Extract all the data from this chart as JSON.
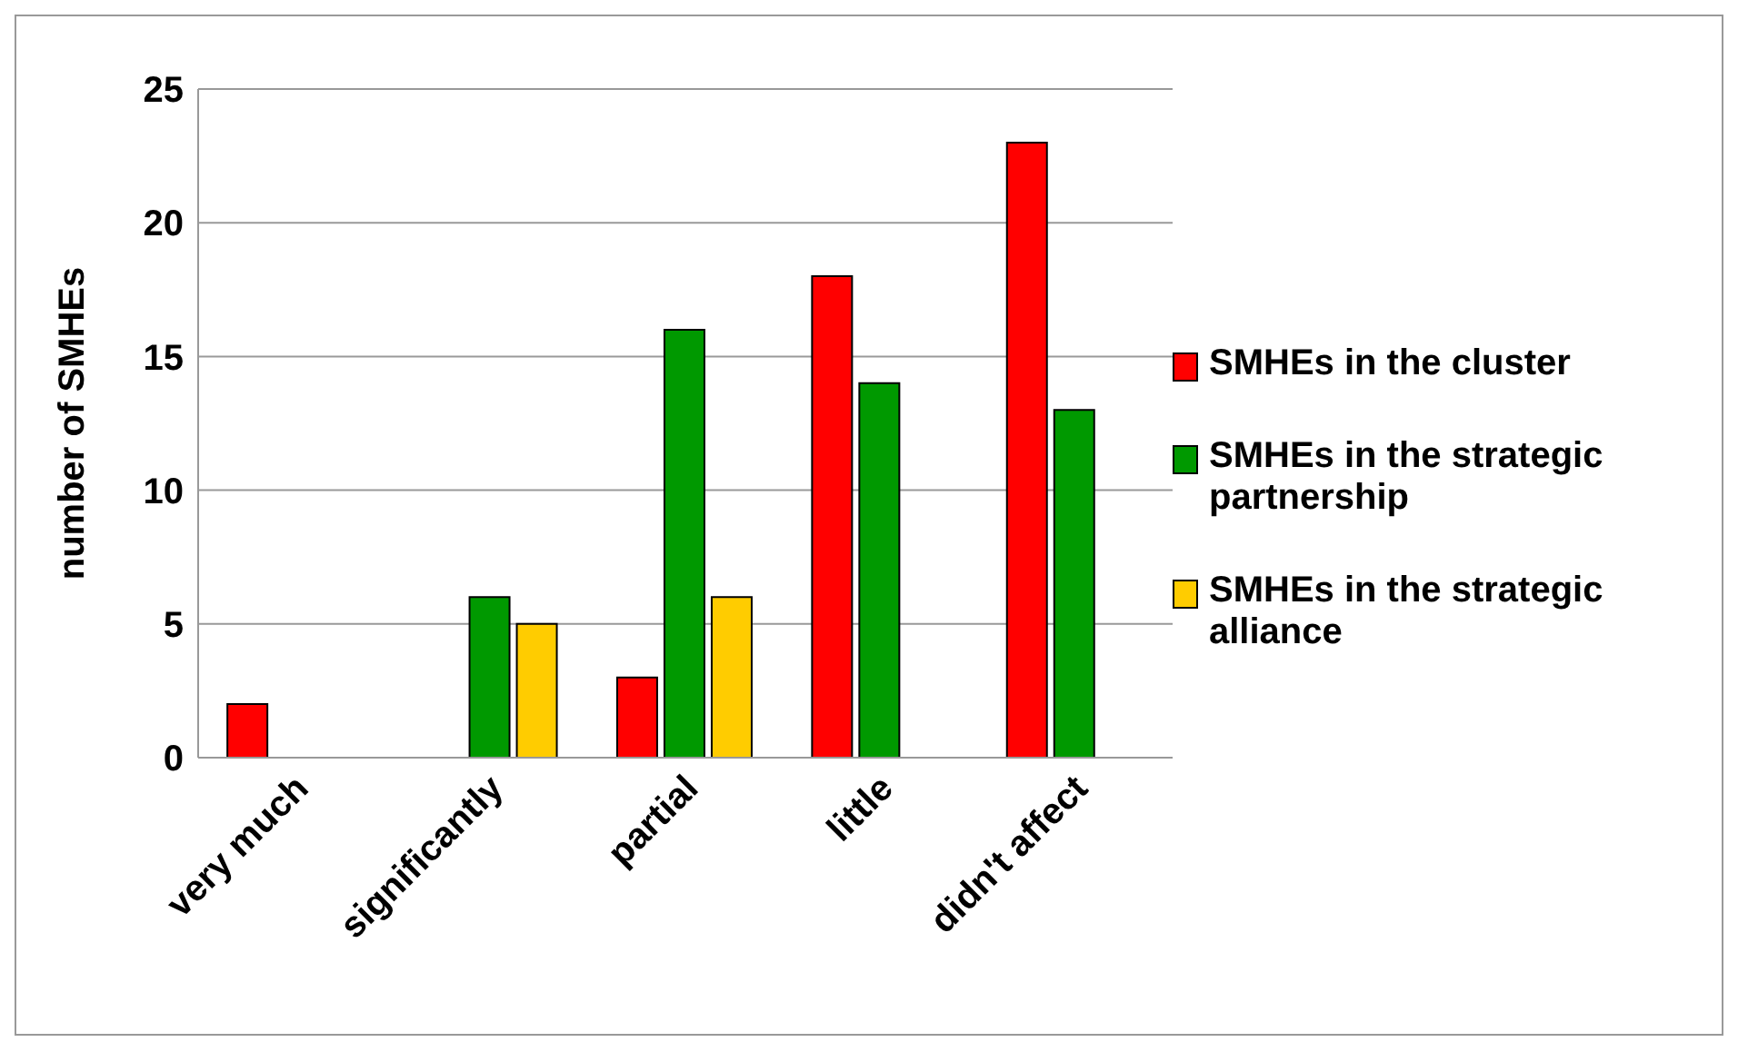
{
  "chart_data": {
    "type": "bar",
    "ylabel": "number of SMHEs",
    "categories": [
      "very much",
      "significantly",
      "partial",
      "little",
      "didn't affect"
    ],
    "series": [
      {
        "name": "SMHEs in the cluster",
        "color": "#ff0000",
        "values": [
          2,
          0,
          3,
          18,
          23
        ]
      },
      {
        "name": "SMHEs in the strategic partnership",
        "color": "#009900",
        "values": [
          0,
          6,
          16,
          14,
          13
        ]
      },
      {
        "name": "SMHEs in the strategic alliance",
        "color": "#ffcc00",
        "values": [
          0,
          5,
          6,
          0,
          0
        ]
      }
    ],
    "ylim": [
      0,
      25
    ],
    "yticks": [
      0,
      5,
      10,
      15,
      20,
      25
    ],
    "grid": "y",
    "legend": "right"
  }
}
